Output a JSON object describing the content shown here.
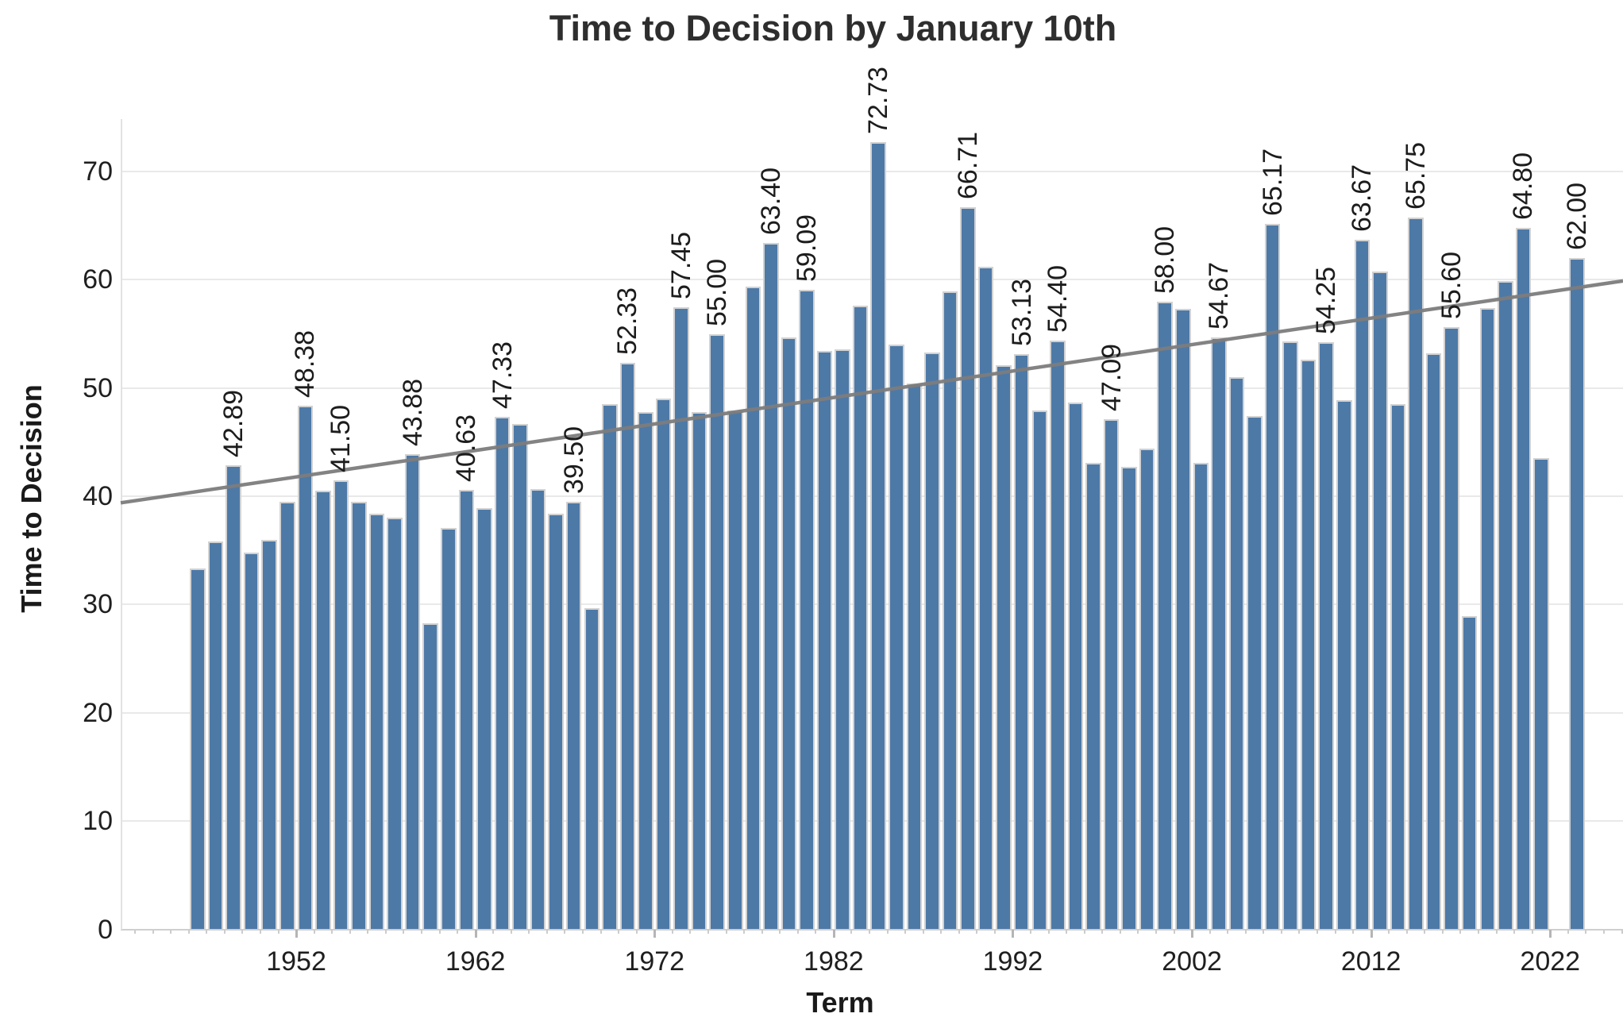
{
  "title": "Time to Decision by January 10th",
  "axes": {
    "x_label": "Term",
    "y_label": "Time to Decision",
    "y_ticks": [
      0,
      10,
      20,
      30,
      40,
      50,
      60,
      70
    ],
    "x_ticks": [
      1952,
      1962,
      1972,
      1982,
      1992,
      2002,
      2012,
      2022
    ]
  },
  "colors": {
    "bar_fill": "#4d79a7",
    "bar_border": "#d2d2d2",
    "trend_line": "#7d7d7d",
    "gridline": "#e9e9e9",
    "axis_line": "#cfcfcf",
    "title_text": "#2e2e2e",
    "tick_text": "#1f1f1f",
    "bar_label_text": "#1c1c1c"
  },
  "chart_data": {
    "type": "bar",
    "title": "Time to Decision by January 10th",
    "xlabel": "Term",
    "ylabel": "Time to Decision",
    "ylim": [
      0,
      78
    ],
    "xlim_years": [
      1942.2,
      2026.1
    ],
    "grid": "horizontal",
    "legend": "none",
    "bar_label_style": "rotated-90-above-local-maxima",
    "years": [
      1946,
      1947,
      1948,
      1949,
      1950,
      1951,
      1952,
      1953,
      1954,
      1955,
      1956,
      1957,
      1958,
      1959,
      1960,
      1961,
      1962,
      1963,
      1964,
      1965,
      1966,
      1967,
      1968,
      1969,
      1970,
      1971,
      1972,
      1973,
      1974,
      1975,
      1976,
      1977,
      1978,
      1979,
      1980,
      1981,
      1982,
      1983,
      1984,
      1985,
      1986,
      1987,
      1988,
      1989,
      1990,
      1991,
      1992,
      1993,
      1994,
      1995,
      1996,
      1997,
      1998,
      1999,
      2000,
      2001,
      2002,
      2003,
      2004,
      2005,
      2006,
      2007,
      2008,
      2009,
      2010,
      2011,
      2012,
      2013,
      2014,
      2015,
      2016,
      2017,
      2018,
      2019,
      2020,
      2021,
      2023
    ],
    "values": [
      33.3,
      35.8,
      42.89,
      34.8,
      36.0,
      39.5,
      48.38,
      40.5,
      41.5,
      39.5,
      38.4,
      38.0,
      43.88,
      28.3,
      37.1,
      40.63,
      38.9,
      47.33,
      46.7,
      40.7,
      38.4,
      39.5,
      29.7,
      48.5,
      52.33,
      47.8,
      49.0,
      57.45,
      47.8,
      55.0,
      47.9,
      59.4,
      63.4,
      54.7,
      59.09,
      53.4,
      53.6,
      57.6,
      72.73,
      54.0,
      50.4,
      53.3,
      58.9,
      66.71,
      61.2,
      52.1,
      53.13,
      47.9,
      54.4,
      48.7,
      43.1,
      47.09,
      42.7,
      44.4,
      58.0,
      57.3,
      43.1,
      54.67,
      51.0,
      47.4,
      65.17,
      54.3,
      52.6,
      54.25,
      48.9,
      63.67,
      60.8,
      48.5,
      65.75,
      53.2,
      55.6,
      28.9,
      57.4,
      59.9,
      64.8,
      43.5,
      62.0
    ],
    "bar_labels": [
      null,
      null,
      "42.89",
      null,
      null,
      null,
      "48.38",
      null,
      "41.50",
      null,
      null,
      null,
      "43.88",
      null,
      null,
      "40.63",
      null,
      "47.33",
      null,
      null,
      null,
      "39.50",
      null,
      null,
      "52.33",
      null,
      null,
      "57.45",
      null,
      "55.00",
      null,
      null,
      "63.40",
      null,
      "59.09",
      null,
      null,
      null,
      "72.73",
      null,
      null,
      null,
      null,
      "66.71",
      null,
      null,
      "53.13",
      null,
      "54.40",
      null,
      null,
      "47.09",
      null,
      null,
      "58.00",
      null,
      null,
      "54.67",
      null,
      null,
      "65.17",
      null,
      null,
      "54.25",
      null,
      "63.67",
      null,
      null,
      "65.75",
      null,
      "55.60",
      null,
      null,
      null,
      "64.80",
      null,
      "62.00"
    ],
    "missing_years": [
      2022
    ],
    "trend_line": {
      "value_at_left_edge": 39.4,
      "value_at_right_edge": 59.9
    }
  }
}
